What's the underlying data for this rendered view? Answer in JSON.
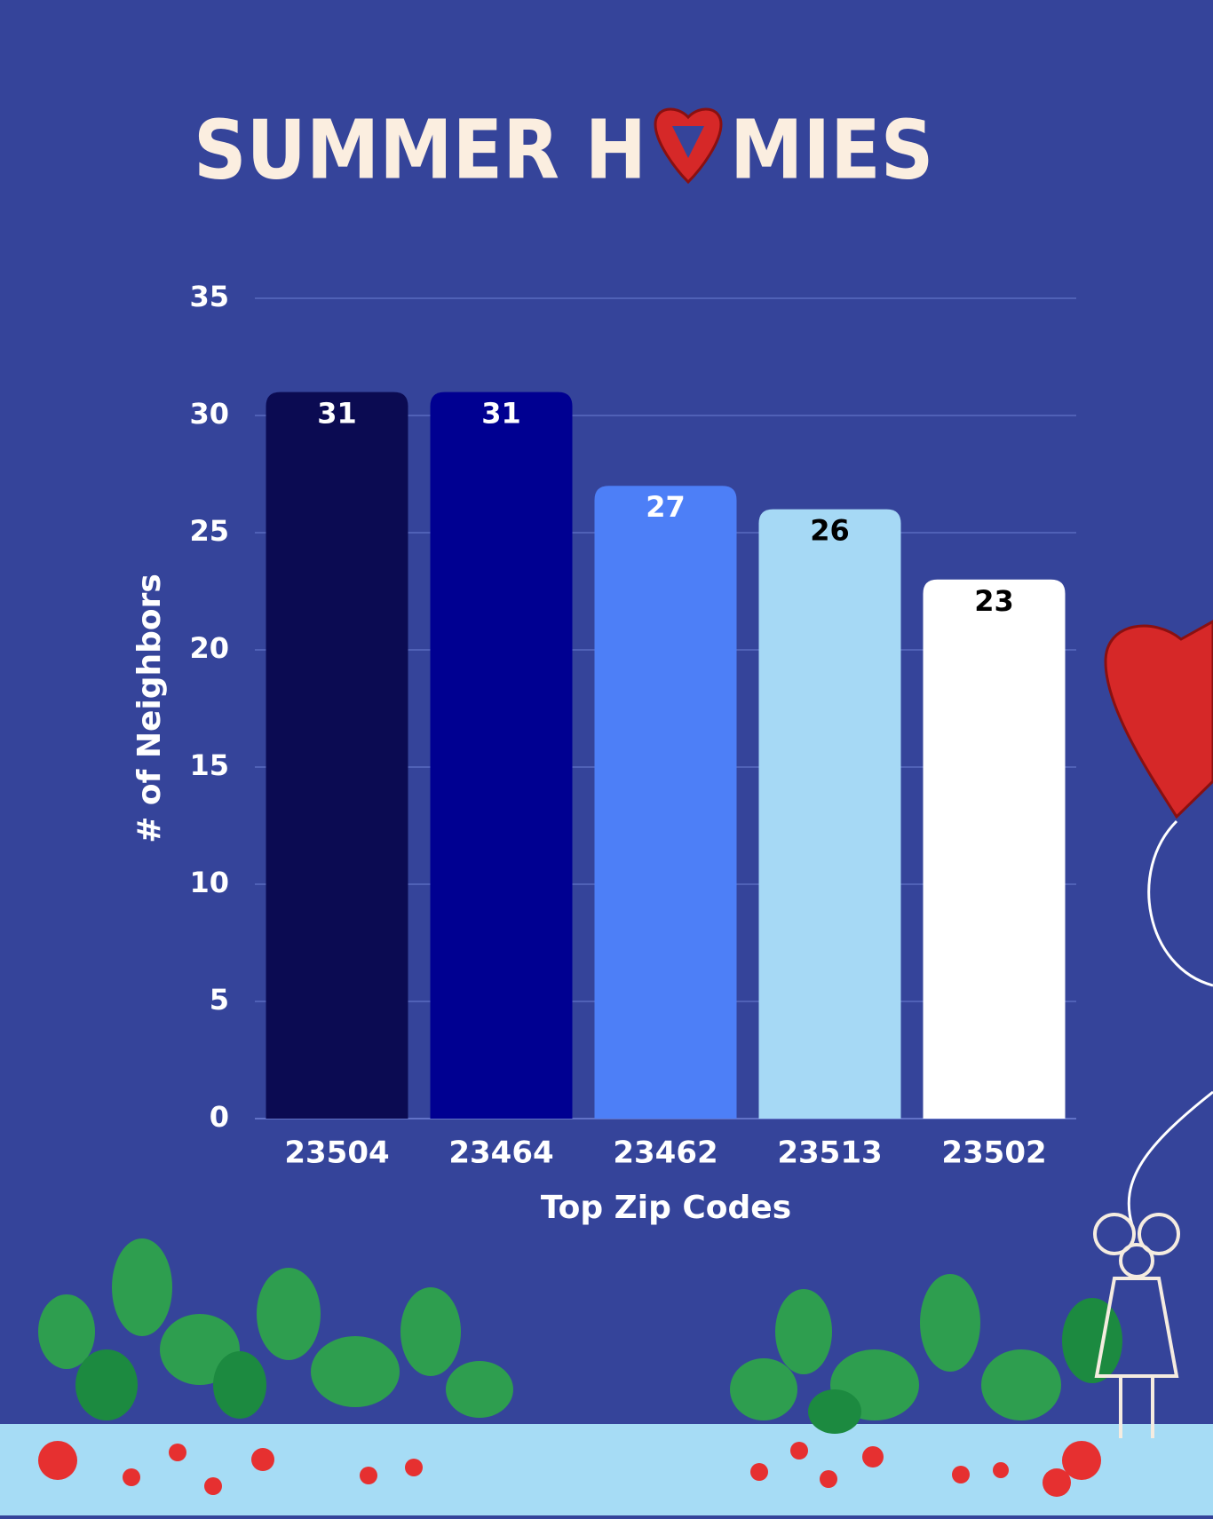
{
  "chart_data": {
    "type": "bar",
    "logo": [
      "SUMMER H",
      "MIES"
    ],
    "x_label": "Top Zip Codes",
    "y_label": "# of Neighbors",
    "categories": [
      "23504",
      "23464",
      "23462",
      "23513",
      "23502"
    ],
    "values": [
      31,
      31,
      27,
      26,
      23
    ],
    "colors": [
      "#0b0b52",
      "#000091",
      "#4d7ff7",
      "#a6d9f5",
      "#ffffff"
    ],
    "ylim": [
      0,
      35
    ],
    "yticks": [
      0,
      5,
      10,
      15,
      20,
      25,
      30,
      35
    ],
    "grid": true
  }
}
